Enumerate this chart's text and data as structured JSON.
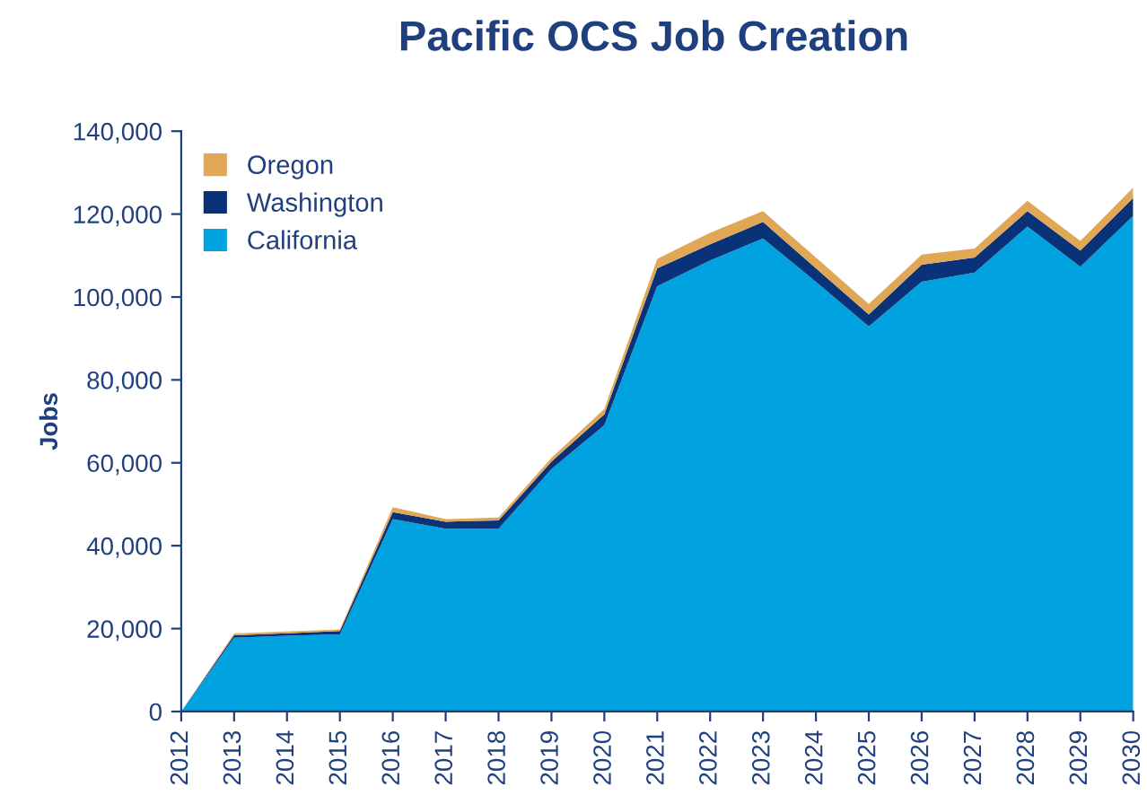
{
  "chart_data": {
    "type": "area",
    "stacked": true,
    "title": "Pacific OCS Job Creation",
    "ylabel": "Jobs",
    "x": [
      2012,
      2013,
      2014,
      2015,
      2016,
      2017,
      2018,
      2019,
      2020,
      2021,
      2022,
      2023,
      2024,
      2025,
      2026,
      2027,
      2028,
      2029,
      2030
    ],
    "series": [
      {
        "name": "California",
        "color": "#00a3e0",
        "values": [
          0,
          17800,
          18300,
          18600,
          46400,
          44100,
          44100,
          58500,
          69100,
          102600,
          108800,
          114100,
          103700,
          92900,
          103700,
          105900,
          117000,
          107300,
          119600
        ]
      },
      {
        "name": "Washington",
        "color": "#0a3278",
        "values": [
          0,
          600,
          600,
          800,
          1700,
          1700,
          2000,
          1800,
          2600,
          4300,
          3900,
          4000,
          3200,
          2900,
          4100,
          3600,
          3700,
          3900,
          4300
        ]
      },
      {
        "name": "Oregon",
        "color": "#e0a856",
        "values": [
          0,
          400,
          400,
          400,
          1200,
          600,
          700,
          900,
          1300,
          2300,
          2800,
          2600,
          2600,
          2500,
          2400,
          2200,
          2500,
          2300,
          2500
        ]
      }
    ],
    "xlim": [
      2012,
      2030
    ],
    "xticks": [
      2012,
      2013,
      2014,
      2015,
      2016,
      2017,
      2018,
      2019,
      2020,
      2021,
      2022,
      2023,
      2024,
      2025,
      2026,
      2027,
      2028,
      2029,
      2030
    ],
    "ylim": [
      0,
      140000
    ],
    "yticks": [
      {
        "value": 0,
        "label": "0"
      },
      {
        "value": 20000,
        "label": "20,000"
      },
      {
        "value": 40000,
        "label": "40,000"
      },
      {
        "value": 60000,
        "label": "60,000"
      },
      {
        "value": 80000,
        "label": "80,000"
      },
      {
        "value": 100000,
        "label": "100,000"
      },
      {
        "value": 120000,
        "label": "120,000"
      },
      {
        "value": 140000,
        "label": "140,000"
      }
    ],
    "grid": false,
    "legend": "top left"
  }
}
